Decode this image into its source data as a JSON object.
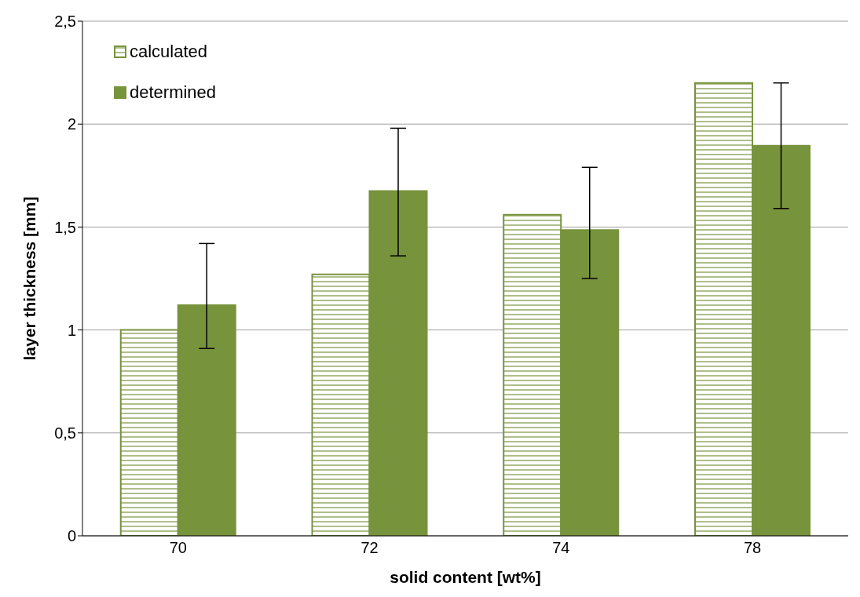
{
  "chart_data": {
    "type": "bar",
    "xlabel": "solid content [wt%]",
    "ylabel": "layer thickness [mm]",
    "categories": [
      "70",
      "72",
      "74",
      "78"
    ],
    "series": [
      {
        "name": "calculated",
        "color": "#77933c",
        "values": [
          1.0,
          1.27,
          1.56,
          2.2
        ]
      },
      {
        "name": "determined",
        "color": "#77933c",
        "values": [
          1.12,
          1.675,
          1.485,
          1.895
        ],
        "errors": [
          [
            0.91,
            1.42
          ],
          [
            1.36,
            1.98
          ],
          [
            1.25,
            1.79
          ],
          [
            1.59,
            2.2
          ]
        ]
      }
    ],
    "ylim": [
      0,
      2.5
    ],
    "yticks": [
      0,
      {
        "value": 0.5,
        "label": "0,5"
      },
      1,
      {
        "value": 1.5,
        "label": "1,5"
      },
      2,
      {
        "value": 2.5,
        "label": "2,5"
      }
    ],
    "grid": "y",
    "legend": "top left"
  }
}
